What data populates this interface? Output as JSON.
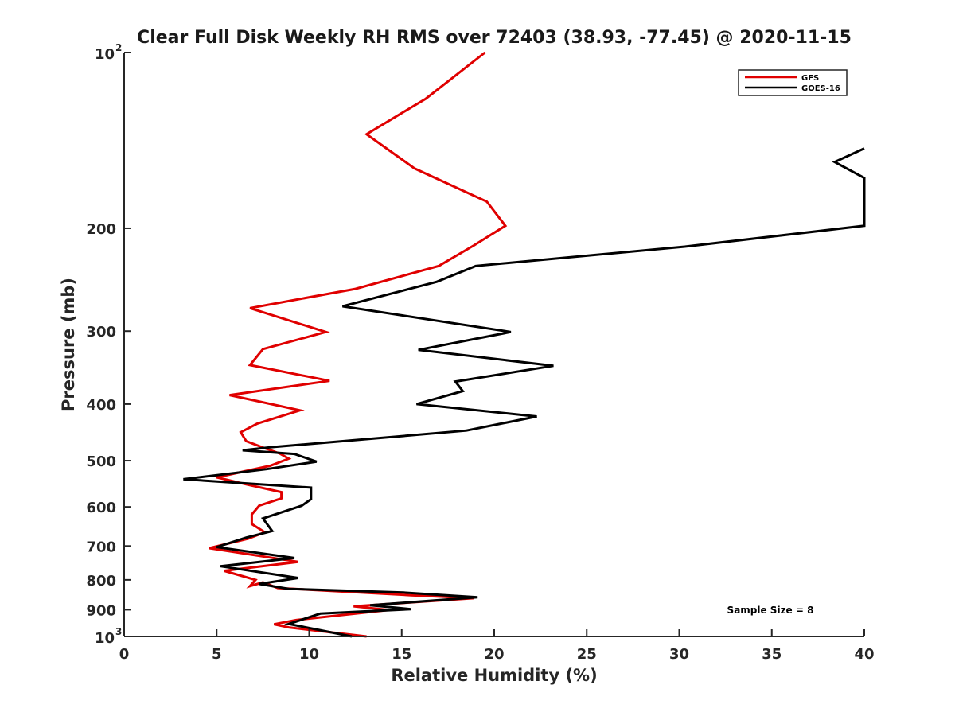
{
  "chart_data": {
    "type": "line",
    "title": "Clear Full Disk Weekly RH RMS over 72403 (38.93, -77.45) @ 2020-11-15",
    "xlabel": "Relative Humidity (%)",
    "ylabel": "Pressure (mb)",
    "xlim": [
      0,
      40
    ],
    "ylim": [
      100,
      1000
    ],
    "y_scale": "log",
    "y_reversed": true,
    "grid": false,
    "legend_position": "top-right",
    "x_ticks": [
      0,
      5,
      10,
      15,
      20,
      25,
      30,
      35,
      40
    ],
    "y_ticks": [
      {
        "value": 100,
        "label": "10",
        "exponent": "2"
      },
      {
        "value": 200,
        "label": "200",
        "exponent": ""
      },
      {
        "value": 300,
        "label": "300",
        "exponent": ""
      },
      {
        "value": 400,
        "label": "400",
        "exponent": ""
      },
      {
        "value": 500,
        "label": "500",
        "exponent": ""
      },
      {
        "value": 600,
        "label": "600",
        "exponent": ""
      },
      {
        "value": 700,
        "label": "700",
        "exponent": ""
      },
      {
        "value": 800,
        "label": "800",
        "exponent": ""
      },
      {
        "value": 900,
        "label": "900",
        "exponent": ""
      },
      {
        "value": 1000,
        "label": "10",
        "exponent": "3"
      }
    ],
    "annotation": "Sample Size = 8",
    "series": [
      {
        "name": "GFS",
        "color": "#e00000",
        "points": [
          [
            19.5,
            100
          ],
          [
            16.3,
            120
          ],
          [
            13.1,
            138
          ],
          [
            15.7,
            158
          ],
          [
            19.6,
            180
          ],
          [
            20.6,
            198
          ],
          [
            18.9,
            214
          ],
          [
            17.0,
            232
          ],
          [
            12.5,
            254
          ],
          [
            6.8,
            274
          ],
          [
            10.9,
            301
          ],
          [
            7.5,
            322
          ],
          [
            6.8,
            343
          ],
          [
            11.1,
            365
          ],
          [
            5.7,
            386
          ],
          [
            9.5,
            410
          ],
          [
            7.2,
            432
          ],
          [
            6.3,
            447
          ],
          [
            6.6,
            463
          ],
          [
            7.6,
            476
          ],
          [
            8.4,
            486
          ],
          [
            8.9,
            496
          ],
          [
            7.9,
            510
          ],
          [
            5.0,
            534
          ],
          [
            6.6,
            549
          ],
          [
            8.5,
            566
          ],
          [
            8.5,
            580
          ],
          [
            7.3,
            597
          ],
          [
            6.9,
            618
          ],
          [
            6.9,
            642
          ],
          [
            7.6,
            663
          ],
          [
            6.7,
            680
          ],
          [
            4.6,
            706
          ],
          [
            9.4,
            745
          ],
          [
            5.4,
            772
          ],
          [
            7.1,
            800
          ],
          [
            6.8,
            820
          ],
          [
            7.5,
            808
          ],
          [
            8.3,
            826
          ],
          [
            15.5,
            850
          ],
          [
            18.9,
            860
          ],
          [
            12.4,
            888
          ],
          [
            14.3,
            901
          ],
          [
            9.3,
            937
          ],
          [
            8.1,
            953
          ],
          [
            8.9,
            965
          ],
          [
            13.1,
            1000
          ]
        ]
      },
      {
        "name": "GOES-16",
        "color": "#000000",
        "points": [
          [
            40.0,
            146
          ],
          [
            38.4,
            154
          ],
          [
            40.0,
            164
          ],
          [
            40.0,
            198
          ],
          [
            30.3,
            215
          ],
          [
            19.0,
            232
          ],
          [
            16.9,
            247
          ],
          [
            11.8,
            272
          ],
          [
            20.9,
            301
          ],
          [
            15.9,
            323
          ],
          [
            23.2,
            344
          ],
          [
            17.9,
            366
          ],
          [
            18.3,
            380
          ],
          [
            15.8,
            400
          ],
          [
            22.3,
            420
          ],
          [
            18.5,
            444
          ],
          [
            12.2,
            462
          ],
          [
            8.0,
            474
          ],
          [
            6.4,
            480
          ],
          [
            9.2,
            487
          ],
          [
            10.4,
            502
          ],
          [
            7.7,
            517
          ],
          [
            3.2,
            538
          ],
          [
            10.1,
            556
          ],
          [
            10.1,
            582
          ],
          [
            9.6,
            597
          ],
          [
            7.5,
            628
          ],
          [
            8.0,
            660
          ],
          [
            6.6,
            677
          ],
          [
            5.0,
            703
          ],
          [
            9.2,
            734
          ],
          [
            5.2,
            758
          ],
          [
            9.4,
            794
          ],
          [
            7.3,
            813
          ],
          [
            8.9,
            829
          ],
          [
            15.1,
            841
          ],
          [
            19.1,
            857
          ],
          [
            13.3,
            884
          ],
          [
            15.5,
            898
          ],
          [
            10.6,
            914
          ],
          [
            8.9,
            952
          ],
          [
            12.3,
            1000
          ]
        ]
      }
    ]
  }
}
